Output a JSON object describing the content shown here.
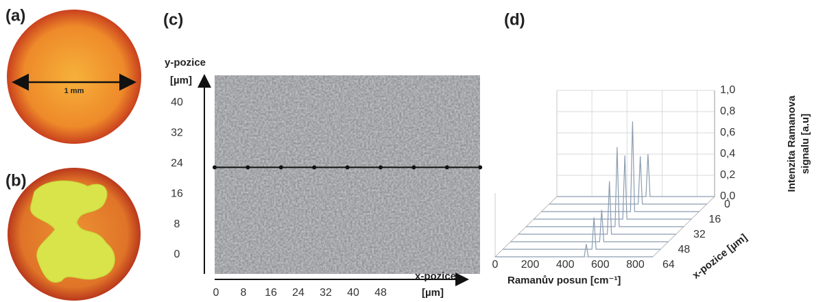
{
  "panels": {
    "a": {
      "label": "(a)",
      "scale_label": "1 mm"
    },
    "b": {
      "label": "(b)"
    },
    "c": {
      "label": "(c)",
      "y_axis_title": "y-pozice",
      "y_unit": "[µm]",
      "yticks": [
        0,
        8,
        16,
        24,
        32,
        40
      ],
      "ylim": [
        0,
        40
      ],
      "x_axis_title": "x-pozice",
      "x_unit": "[µm]",
      "xticks": [
        0,
        8,
        16,
        24,
        32,
        40,
        48
      ],
      "xlim": [
        0,
        48
      ],
      "scan_line_y": 23
    },
    "d": {
      "label": "(d)",
      "x_axis_title": "Ramanův posun [cm⁻¹]",
      "xticks": [
        0,
        200,
        400,
        600,
        800
      ],
      "xlim": [
        0,
        900
      ],
      "depth_axis_title": "x-pozice [µm]",
      "depth_ticks": [
        0,
        16,
        32,
        48,
        64
      ],
      "depth_lim": [
        0,
        64
      ],
      "z_axis_title": [
        "Intenzita Ramanova",
        "signalu  [a.u]"
      ],
      "zticks": [
        {
          "value": 0,
          "label": "0,0"
        },
        {
          "value": 0.2,
          "label": "0,2"
        },
        {
          "value": 0.4,
          "label": "0,4"
        },
        {
          "value": 0.6,
          "label": "0,6"
        },
        {
          "value": 0.8,
          "label": "0,8"
        },
        {
          "value": 1.0,
          "label": "1,0"
        }
      ],
      "zlim": [
        0,
        1.0
      ],
      "spectra": {
        "positions": [
          0,
          8,
          16,
          24,
          32,
          40,
          48,
          56,
          64
        ],
        "peak_position": 520,
        "peak_heights": [
          0.4,
          0.45,
          0.85,
          0.6,
          0.75,
          0.5,
          0.3,
          0.3,
          0.12
        ]
      }
    }
  }
}
